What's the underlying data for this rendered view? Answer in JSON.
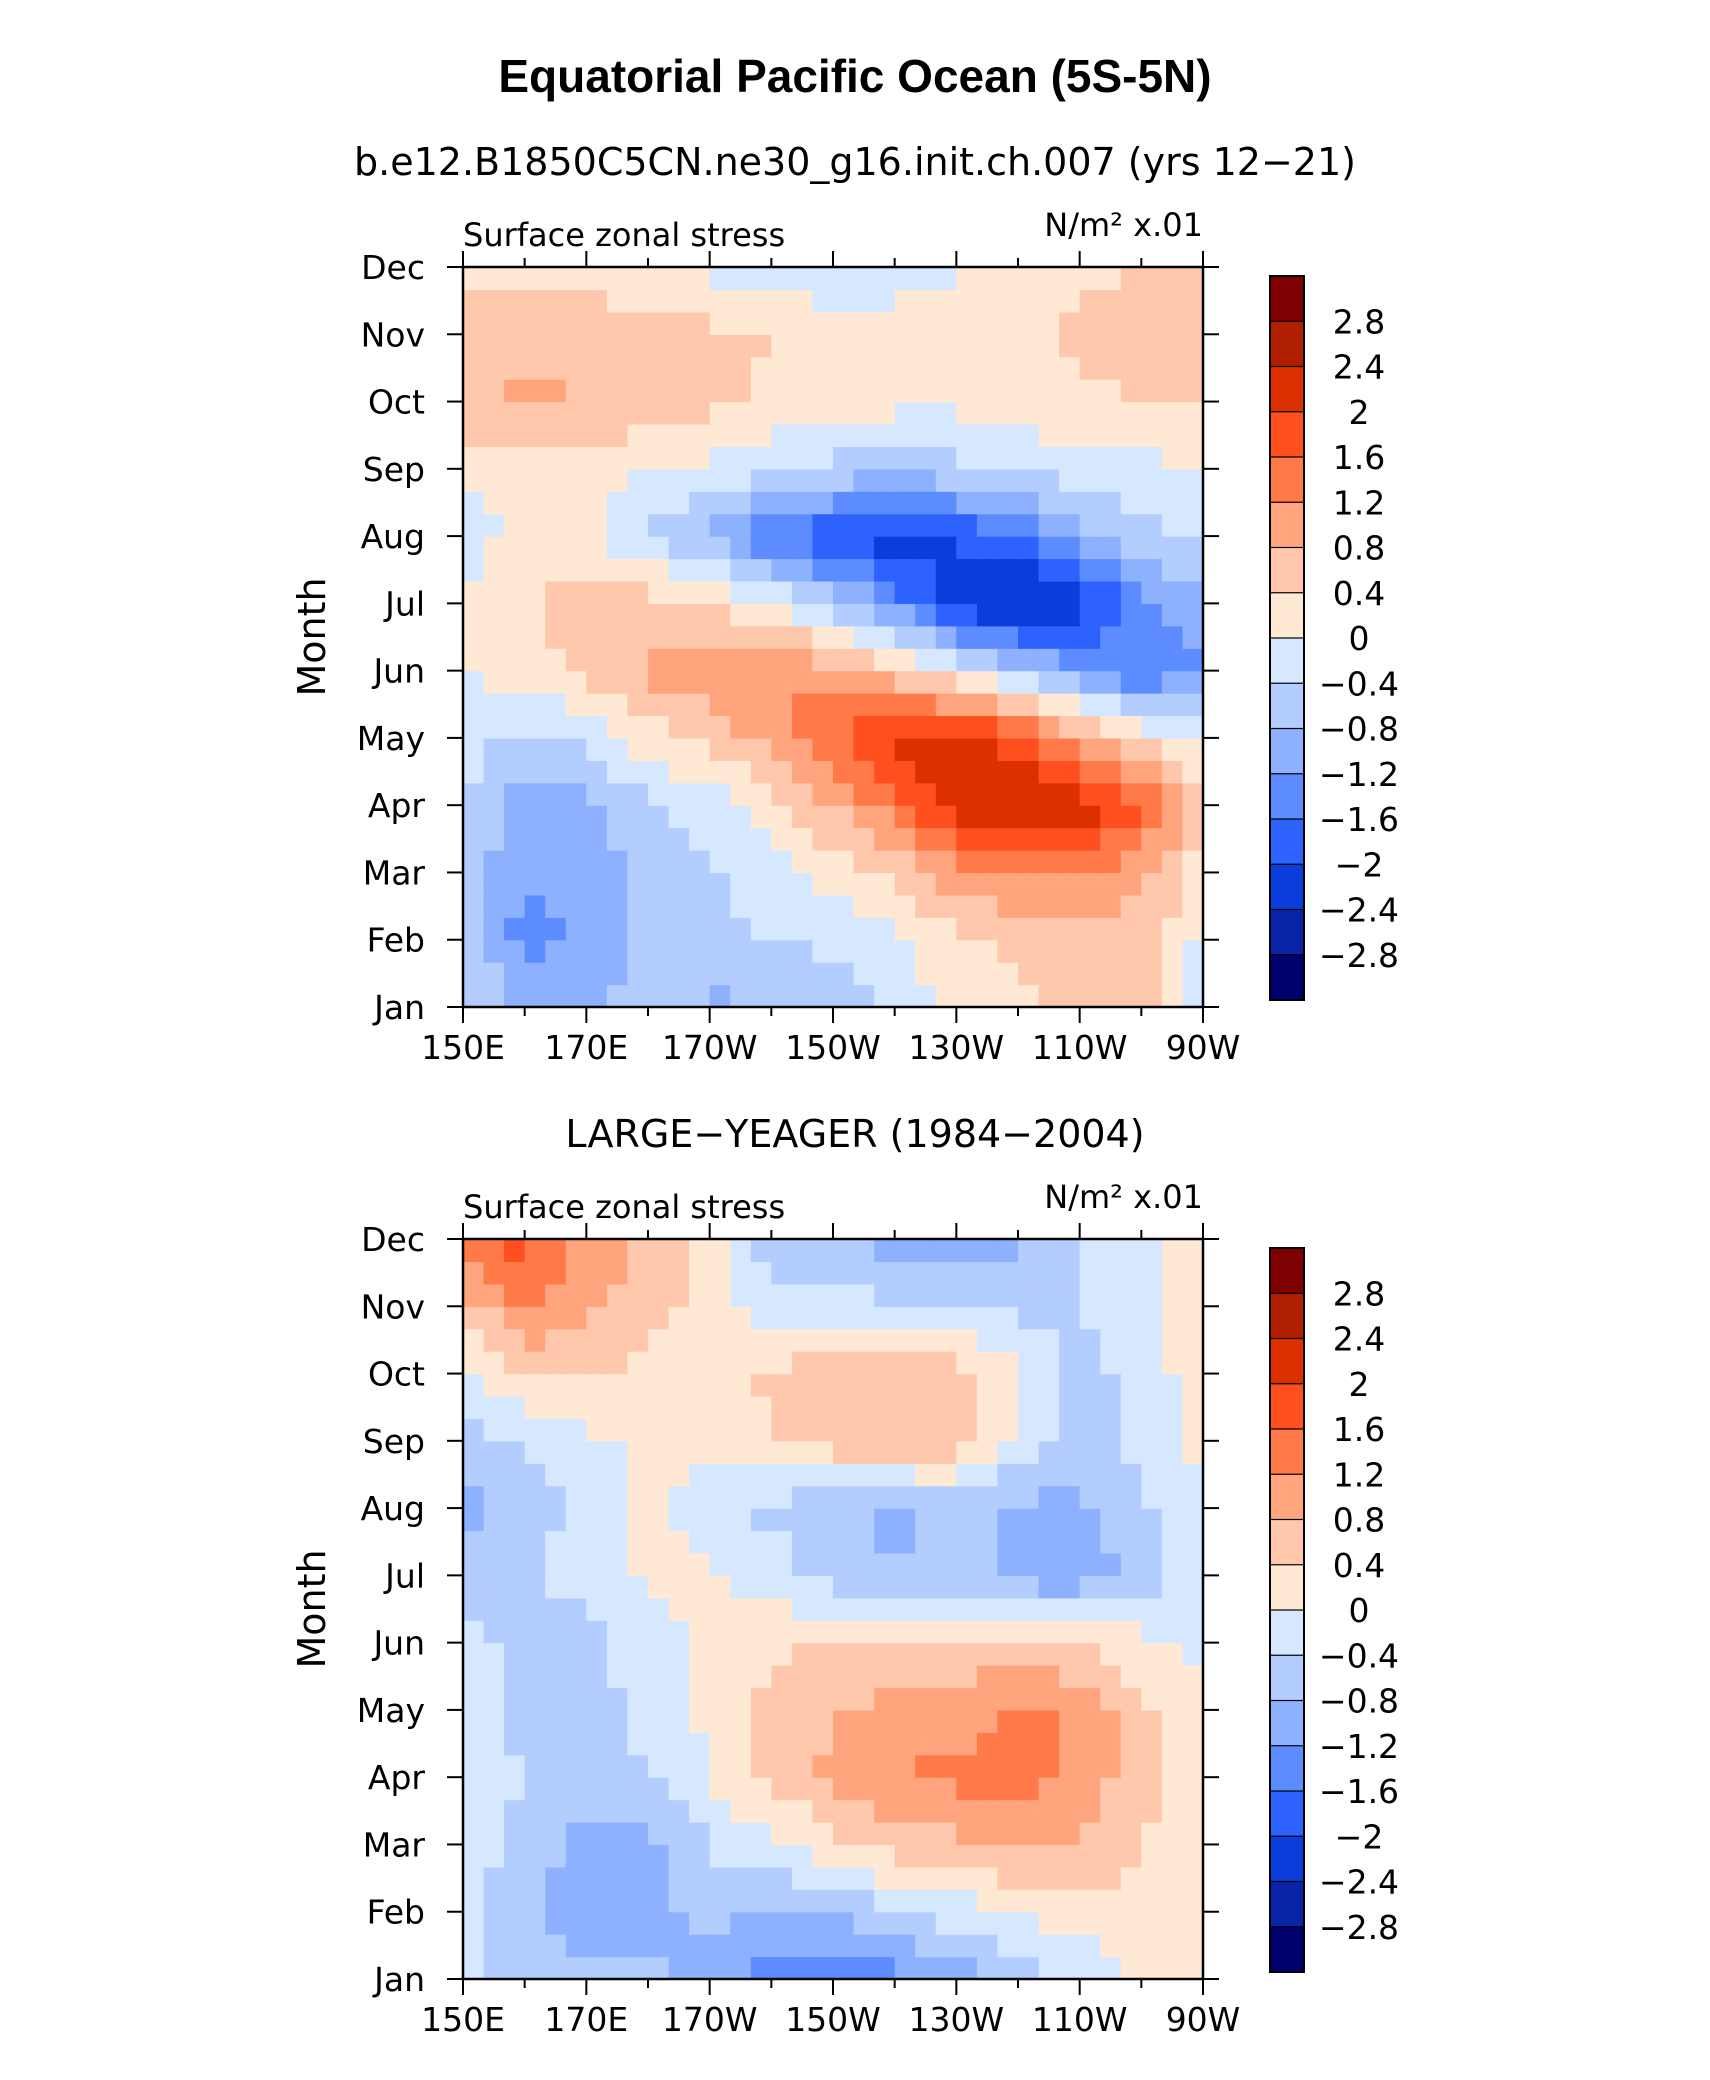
{
  "figure": {
    "title": "Equatorial Pacific Ocean (5S-5N)"
  },
  "colorbar": {
    "labels": [
      "2.8",
      "2.4",
      "2",
      "1.6",
      "1.2",
      "0.8",
      "0.4",
      "0",
      "−0.4",
      "−0.8",
      "−1.2",
      "−1.6",
      "−2",
      "−2.4",
      "−2.8"
    ],
    "colors": [
      "#7f0000",
      "#b01e00",
      "#dc3000",
      "#ff4f1f",
      "#ff7a48",
      "#ffa47d",
      "#ffc8ad",
      "#ffe8d4",
      "#d6e8ff",
      "#b4cdff",
      "#8db0ff",
      "#5c8cff",
      "#2d62ff",
      "#0b3ddc",
      "#0a24a8",
      "#00006e"
    ],
    "levels": [
      -2.8,
      -2.4,
      -2.0,
      -1.6,
      -1.2,
      -0.8,
      -0.4,
      0,
      0.4,
      0.8,
      1.2,
      1.6,
      2.0,
      2.4,
      2.8
    ]
  },
  "chart_data": [
    {
      "type": "heatmap",
      "plot_title": "b.e12.B1850C5CN.ne30_g16.init.ch.007 (yrs 12−21)",
      "left_string": "Surface zonal stress",
      "units": "N/m² x.01",
      "ylabel": "Month",
      "xlabel": "",
      "x_ticks": [
        "150E",
        "170E",
        "170W",
        "150W",
        "130W",
        "110W",
        "90W"
      ],
      "y_ticks": [
        "Jan",
        "Feb",
        "Mar",
        "Apr",
        "May",
        "Jun",
        "Jul",
        "Aug",
        "Sep",
        "Oct",
        "Nov",
        "Dec"
      ],
      "x_longitudes": [
        150,
        160,
        170,
        180,
        190,
        200,
        210,
        220,
        230,
        240,
        250,
        260,
        270
      ],
      "months": [
        "Jan",
        "Feb",
        "Mar",
        "Apr",
        "May",
        "Jun",
        "Jul",
        "Aug",
        "Sep",
        "Oct",
        "Nov",
        "Dec"
      ],
      "values": [
        [
          -0.3,
          -1.0,
          -0.9,
          -0.6,
          -0.9,
          -0.8,
          -0.6,
          -0.3,
          0.1,
          0.3,
          0.5,
          0.6,
          -0.2
        ],
        [
          -0.5,
          -1.4,
          -1.1,
          -0.7,
          -0.5,
          -0.4,
          -0.3,
          -0.1,
          0.3,
          0.5,
          0.7,
          0.5,
          -0.1
        ],
        [
          -0.5,
          -1.2,
          -1.0,
          -0.7,
          -0.5,
          -0.2,
          0.2,
          0.5,
          1.0,
          1.2,
          1.3,
          1.0,
          0.2
        ],
        [
          -0.4,
          -1.0,
          -0.9,
          -0.5,
          -0.2,
          0.2,
          0.8,
          1.4,
          2.2,
          2.5,
          2.3,
          1.6,
          0.5
        ],
        [
          -0.2,
          -0.5,
          -0.3,
          0.2,
          0.5,
          1.0,
          1.6,
          2.2,
          2.4,
          1.8,
          1.0,
          0.3,
          -0.2
        ],
        [
          0.0,
          0.2,
          0.5,
          0.9,
          1.1,
          1.2,
          1.0,
          0.6,
          -0.1,
          -0.7,
          -1.2,
          -1.6,
          -1.2
        ],
        [
          0.1,
          0.4,
          0.5,
          0.6,
          0.4,
          0.0,
          -0.6,
          -1.4,
          -2.2,
          -2.6,
          -2.2,
          -1.4,
          -0.8
        ],
        [
          -0.3,
          0.2,
          0.1,
          -0.4,
          -0.9,
          -1.6,
          -2.0,
          -2.2,
          -2.0,
          -1.6,
          -1.0,
          -0.5,
          -0.3
        ],
        [
          0.2,
          0.2,
          0.1,
          0.0,
          -0.1,
          -0.3,
          -0.5,
          -0.6,
          -0.5,
          -0.3,
          -0.2,
          -0.1,
          0.0
        ],
        [
          0.6,
          0.9,
          0.8,
          0.7,
          0.5,
          0.3,
          0.2,
          0.1,
          0.1,
          0.2,
          0.3,
          0.4,
          0.4
        ],
        [
          0.6,
          0.7,
          0.7,
          0.6,
          0.5,
          0.4,
          0.2,
          0.2,
          0.1,
          0.2,
          0.5,
          0.7,
          0.8
        ],
        [
          0.3,
          0.3,
          0.2,
          0.1,
          -0.1,
          -0.3,
          -0.3,
          -0.2,
          0.0,
          0.2,
          0.3,
          0.4,
          0.4
        ]
      ],
      "zlim": [
        -3.0,
        3.0
      ]
    },
    {
      "type": "heatmap",
      "plot_title": "LARGE−YEAGER (1984−2004)",
      "left_string": "Surface zonal stress",
      "units": "N/m² x.01",
      "ylabel": "Month",
      "xlabel": "",
      "x_ticks": [
        "150E",
        "170E",
        "170W",
        "150W",
        "130W",
        "110W",
        "90W"
      ],
      "y_ticks": [
        "Jan",
        "Feb",
        "Mar",
        "Apr",
        "May",
        "Jun",
        "Jul",
        "Aug",
        "Sep",
        "Oct",
        "Nov",
        "Dec"
      ],
      "x_longitudes": [
        150,
        160,
        170,
        180,
        190,
        200,
        210,
        220,
        230,
        240,
        250,
        260,
        270
      ],
      "months": [
        "Jan",
        "Feb",
        "Mar",
        "Apr",
        "May",
        "Jun",
        "Jul",
        "Aug",
        "Sep",
        "Oct",
        "Nov",
        "Dec"
      ],
      "values": [
        [
          -0.3,
          -0.5,
          -0.6,
          -0.7,
          -1.1,
          -1.4,
          -1.5,
          -1.4,
          -1.0,
          -0.7,
          -0.3,
          0.1,
          0.1
        ],
        [
          -0.3,
          -0.7,
          -1.1,
          -1.0,
          -0.6,
          -0.9,
          -0.8,
          -0.5,
          -0.2,
          0.1,
          0.2,
          0.3,
          0.2
        ],
        [
          -0.2,
          -0.5,
          -1.0,
          -0.9,
          -0.4,
          -0.1,
          0.3,
          0.6,
          0.7,
          0.9,
          0.8,
          0.4,
          0.1
        ],
        [
          -0.2,
          -0.4,
          -0.6,
          -0.4,
          0.0,
          0.5,
          0.9,
          1.2,
          1.3,
          1.4,
          1.0,
          0.6,
          0.1
        ],
        [
          -0.3,
          -0.5,
          -0.6,
          -0.3,
          0.1,
          0.5,
          0.8,
          0.9,
          1.0,
          1.3,
          1.1,
          0.5,
          0.1
        ],
        [
          -0.3,
          -0.5,
          -0.5,
          -0.2,
          0.1,
          0.3,
          0.4,
          0.5,
          0.5,
          0.5,
          0.4,
          0.1,
          -0.1
        ],
        [
          -0.5,
          -0.4,
          -0.3,
          0.1,
          0.1,
          -0.2,
          -0.6,
          -0.8,
          -0.6,
          -1.0,
          -1.1,
          -0.6,
          -0.1
        ],
        [
          -1.0,
          -0.6,
          -0.3,
          0.1,
          -0.3,
          -0.5,
          -0.7,
          -0.9,
          -0.6,
          -0.9,
          -0.9,
          -0.5,
          0.0
        ],
        [
          -0.6,
          -0.4,
          -0.1,
          0.1,
          0.1,
          0.4,
          0.6,
          0.8,
          0.7,
          -0.1,
          -0.6,
          -0.3,
          0.1
        ],
        [
          -0.2,
          0.5,
          0.5,
          0.2,
          0.1,
          0.5,
          0.6,
          0.7,
          0.6,
          0.1,
          -0.5,
          -0.3,
          0.3
        ],
        [
          0.6,
          1.2,
          0.9,
          0.6,
          0.2,
          -0.2,
          -0.3,
          -0.3,
          -0.4,
          -0.5,
          -0.4,
          -0.2,
          0.2
        ],
        [
          1.2,
          1.8,
          1.0,
          0.7,
          0.2,
          -0.6,
          -0.8,
          -1.0,
          -1.2,
          -0.9,
          -0.4,
          -0.1,
          0.3
        ]
      ],
      "zlim": [
        -3.0,
        3.0
      ]
    }
  ]
}
